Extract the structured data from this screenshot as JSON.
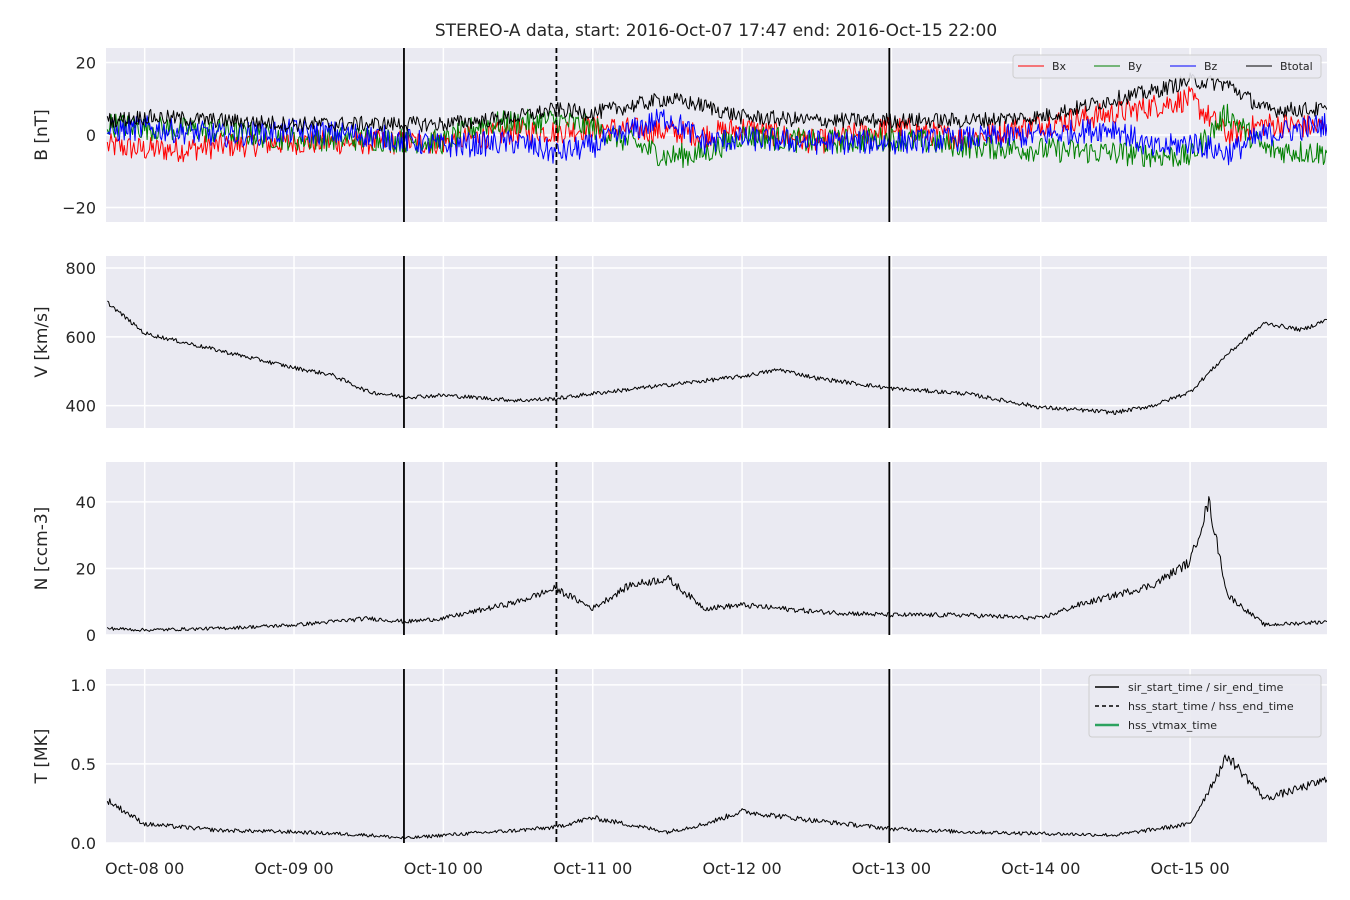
{
  "title": "STEREO-A data, start: 2016-Oct-07 17:47  end: 2016-Oct-15 22:00",
  "chart_data": {
    "type": "line",
    "x_axis": {
      "start": "2016-10-07 17:47",
      "end": "2016-10-15 22:00",
      "ticks": [
        {
          "date": "2016-10-08 00:00",
          "label": "Oct-08 00"
        },
        {
          "date": "2016-10-09 00:00",
          "label": "Oct-09 00"
        },
        {
          "date": "2016-10-10 00:00",
          "label": "Oct-10 00"
        },
        {
          "date": "2016-10-11 00:00",
          "label": "Oct-11 00"
        },
        {
          "date": "2016-10-12 00:00",
          "label": "Oct-12 00"
        },
        {
          "date": "2016-10-13 00:00",
          "label": "Oct-13 00"
        },
        {
          "date": "2016-10-14 00:00",
          "label": "Oct-14 00"
        },
        {
          "date": "2016-10-15 00:00",
          "label": "Oct-15 00"
        }
      ]
    },
    "event_lines": [
      {
        "date": "2016-10-09 17:40",
        "style": "solid",
        "label": "sir_start_time / sir_end_time"
      },
      {
        "date": "2016-10-10 18:10",
        "style": "dashed",
        "label": "hss_start_time / hss_end_time"
      },
      {
        "date": "2016-10-12 23:40",
        "style": "solid",
        "label": "sir_start_time / sir_end_time"
      }
    ],
    "event_legend": [
      {
        "label": "sir_start_time / sir_end_time",
        "style": "solid",
        "color": "#000000"
      },
      {
        "label": "hss_start_time / hss_end_time",
        "style": "dashed",
        "color": "#000000"
      },
      {
        "label": "hss_vtmax_time",
        "style": "solid",
        "color": "#2ca25f"
      }
    ],
    "panels": [
      {
        "name": "B",
        "ylabel": "B [nT]",
        "ylim": [
          -24,
          24
        ],
        "yticks": [
          -20,
          0,
          20
        ],
        "grid": true,
        "legend": "top-right",
        "series": [
          {
            "name": "Bx",
            "color": "#ff0000",
            "points": [
              [
                "2016-10-07 18:00",
                -3
              ],
              [
                "2016-10-08 00:00",
                -4
              ],
              [
                "2016-10-08 06:00",
                -4
              ],
              [
                "2016-10-08 12:00",
                -3
              ],
              [
                "2016-10-09 00:00",
                -2
              ],
              [
                "2016-10-09 12:00",
                -2
              ],
              [
                "2016-10-10 00:00",
                -2
              ],
              [
                "2016-10-10 12:00",
                1
              ],
              [
                "2016-10-10 18:00",
                1
              ],
              [
                "2016-10-11 00:00",
                2
              ],
              [
                "2016-10-11 12:00",
                1
              ],
              [
                "2016-10-11 18:00",
                0
              ],
              [
                "2016-10-12 00:00",
                2
              ],
              [
                "2016-10-12 12:00",
                -2
              ],
              [
                "2016-10-13 00:00",
                2
              ],
              [
                "2016-10-13 12:00",
                -1
              ],
              [
                "2016-10-14 00:00",
                3
              ],
              [
                "2016-10-14 12:00",
                6
              ],
              [
                "2016-10-14 18:00",
                8
              ],
              [
                "2016-10-15 00:00",
                10
              ],
              [
                "2016-10-15 06:00",
                0
              ],
              [
                "2016-10-15 12:00",
                3
              ],
              [
                "2016-10-15 22:00",
                2
              ]
            ]
          },
          {
            "name": "By",
            "color": "#008000",
            "points": [
              [
                "2016-10-07 18:00",
                3
              ],
              [
                "2016-10-08 00:00",
                2
              ],
              [
                "2016-10-08 12:00",
                1
              ],
              [
                "2016-10-09 00:00",
                -1
              ],
              [
                "2016-10-09 12:00",
                -1
              ],
              [
                "2016-10-10 00:00",
                -2
              ],
              [
                "2016-10-10 06:00",
                3
              ],
              [
                "2016-10-10 18:00",
                4
              ],
              [
                "2016-10-11 00:00",
                2
              ],
              [
                "2016-10-11 12:00",
                -6
              ],
              [
                "2016-10-11 18:00",
                -5
              ],
              [
                "2016-10-12 00:00",
                0
              ],
              [
                "2016-10-12 12:00",
                -2
              ],
              [
                "2016-10-13 00:00",
                -1
              ],
              [
                "2016-10-13 12:00",
                -3
              ],
              [
                "2016-10-14 00:00",
                -4
              ],
              [
                "2016-10-14 12:00",
                -5
              ],
              [
                "2016-10-15 00:00",
                -6
              ],
              [
                "2016-10-15 06:00",
                6
              ],
              [
                "2016-10-15 12:00",
                -4
              ],
              [
                "2016-10-15 22:00",
                -5
              ]
            ]
          },
          {
            "name": "Bz",
            "color": "#0000ff",
            "points": [
              [
                "2016-10-07 18:00",
                1
              ],
              [
                "2016-10-08 00:00",
                2
              ],
              [
                "2016-10-08 12:00",
                0
              ],
              [
                "2016-10-09 00:00",
                1
              ],
              [
                "2016-10-09 12:00",
                0
              ],
              [
                "2016-10-10 00:00",
                -3
              ],
              [
                "2016-10-10 12:00",
                -2
              ],
              [
                "2016-10-10 18:00",
                -5
              ],
              [
                "2016-10-11 00:00",
                -3
              ],
              [
                "2016-10-11 12:00",
                5
              ],
              [
                "2016-10-11 18:00",
                -2
              ],
              [
                "2016-10-12 00:00",
                -1
              ],
              [
                "2016-10-12 12:00",
                -2
              ],
              [
                "2016-10-13 00:00",
                -2
              ],
              [
                "2016-10-13 12:00",
                -1
              ],
              [
                "2016-10-14 00:00",
                0
              ],
              [
                "2016-10-14 12:00",
                2
              ],
              [
                "2016-10-14 18:00",
                -4
              ],
              [
                "2016-10-15 00:00",
                -2
              ],
              [
                "2016-10-15 06:00",
                -5
              ],
              [
                "2016-10-15 12:00",
                0
              ],
              [
                "2016-10-15 22:00",
                3
              ]
            ]
          },
          {
            "name": "Btotal",
            "color": "#000000",
            "points": [
              [
                "2016-10-07 18:00",
                4
              ],
              [
                "2016-10-08 00:00",
                5
              ],
              [
                "2016-10-08 12:00",
                4
              ],
              [
                "2016-10-09 00:00",
                3
              ],
              [
                "2016-10-09 12:00",
                3
              ],
              [
                "2016-10-10 00:00",
                3
              ],
              [
                "2016-10-10 12:00",
                5
              ],
              [
                "2016-10-10 18:00",
                7
              ],
              [
                "2016-10-11 00:00",
                6
              ],
              [
                "2016-10-11 12:00",
                10
              ],
              [
                "2016-10-11 18:00",
                8
              ],
              [
                "2016-10-12 00:00",
                5
              ],
              [
                "2016-10-12 12:00",
                4
              ],
              [
                "2016-10-13 00:00",
                4
              ],
              [
                "2016-10-13 12:00",
                4
              ],
              [
                "2016-10-14 00:00",
                5
              ],
              [
                "2016-10-14 12:00",
                10
              ],
              [
                "2016-10-14 18:00",
                12
              ],
              [
                "2016-10-15 00:00",
                15
              ],
              [
                "2016-10-15 06:00",
                14
              ],
              [
                "2016-10-15 12:00",
                7
              ],
              [
                "2016-10-15 22:00",
                7
              ]
            ]
          }
        ]
      },
      {
        "name": "V",
        "ylabel": "V [km/s]",
        "ylim": [
          335,
          835
        ],
        "yticks": [
          400,
          600,
          800
        ],
        "grid": true,
        "series": [
          {
            "name": "",
            "color": "#000000",
            "points": [
              [
                "2016-10-07 18:00",
                700
              ],
              [
                "2016-10-08 00:00",
                610
              ],
              [
                "2016-10-08 12:00",
                560
              ],
              [
                "2016-10-09 00:00",
                510
              ],
              [
                "2016-10-09 06:00",
                490
              ],
              [
                "2016-10-09 12:00",
                440
              ],
              [
                "2016-10-09 18:00",
                425
              ],
              [
                "2016-10-10 00:00",
                430
              ],
              [
                "2016-10-10 12:00",
                415
              ],
              [
                "2016-10-10 18:00",
                420
              ],
              [
                "2016-10-11 00:00",
                435
              ],
              [
                "2016-10-11 12:00",
                460
              ],
              [
                "2016-10-12 00:00",
                485
              ],
              [
                "2016-10-12 06:00",
                505
              ],
              [
                "2016-10-12 12:00",
                480
              ],
              [
                "2016-10-13 00:00",
                450
              ],
              [
                "2016-10-13 12:00",
                435
              ],
              [
                "2016-10-14 00:00",
                395
              ],
              [
                "2016-10-14 12:00",
                380
              ],
              [
                "2016-10-14 18:00",
                400
              ],
              [
                "2016-10-15 00:00",
                440
              ],
              [
                "2016-10-15 06:00",
                550
              ],
              [
                "2016-10-15 12:00",
                640
              ],
              [
                "2016-10-15 18:00",
                620
              ],
              [
                "2016-10-15 22:00",
                650
              ]
            ]
          }
        ]
      },
      {
        "name": "N",
        "ylabel": "N [ccm-3]",
        "ylim": [
          0,
          52
        ],
        "yticks": [
          0,
          20,
          40
        ],
        "grid": true,
        "series": [
          {
            "name": "",
            "color": "#000000",
            "points": [
              [
                "2016-10-07 18:00",
                2
              ],
              [
                "2016-10-08 00:00",
                1.5
              ],
              [
                "2016-10-08 12:00",
                2
              ],
              [
                "2016-10-09 00:00",
                3
              ],
              [
                "2016-10-09 12:00",
                5
              ],
              [
                "2016-10-09 18:00",
                4
              ],
              [
                "2016-10-10 00:00",
                5
              ],
              [
                "2016-10-10 12:00",
                10
              ],
              [
                "2016-10-10 18:00",
                14
              ],
              [
                "2016-10-11 00:00",
                8
              ],
              [
                "2016-10-11 06:00",
                15
              ],
              [
                "2016-10-11 12:00",
                17
              ],
              [
                "2016-10-11 18:00",
                8
              ],
              [
                "2016-10-12 00:00",
                9
              ],
              [
                "2016-10-12 12:00",
                7
              ],
              [
                "2016-10-13 00:00",
                6
              ],
              [
                "2016-10-13 12:00",
                6
              ],
              [
                "2016-10-14 00:00",
                5
              ],
              [
                "2016-10-14 06:00",
                9
              ],
              [
                "2016-10-14 12:00",
                12
              ],
              [
                "2016-10-14 18:00",
                15
              ],
              [
                "2016-10-15 00:00",
                22
              ],
              [
                "2016-10-15 03:00",
                40
              ],
              [
                "2016-10-15 06:00",
                12
              ],
              [
                "2016-10-15 12:00",
                3
              ],
              [
                "2016-10-15 22:00",
                4
              ]
            ]
          }
        ]
      },
      {
        "name": "T",
        "ylabel": "T [MK]",
        "ylim": [
          0,
          1.1
        ],
        "yticks": [
          0.0,
          0.5,
          1.0
        ],
        "ytick_labels": [
          "0.0",
          "0.5",
          "1.0"
        ],
        "grid": true,
        "legend": "top-right",
        "series": [
          {
            "name": "",
            "color": "#000000",
            "points": [
              [
                "2016-10-07 18:00",
                0.27
              ],
              [
                "2016-10-08 00:00",
                0.12
              ],
              [
                "2016-10-08 12:00",
                0.08
              ],
              [
                "2016-10-09 00:00",
                0.07
              ],
              [
                "2016-10-09 12:00",
                0.05
              ],
              [
                "2016-10-09 18:00",
                0.03
              ],
              [
                "2016-10-10 00:00",
                0.05
              ],
              [
                "2016-10-10 12:00",
                0.08
              ],
              [
                "2016-10-10 18:00",
                0.1
              ],
              [
                "2016-10-11 00:00",
                0.16
              ],
              [
                "2016-10-11 12:00",
                0.07
              ],
              [
                "2016-10-11 18:00",
                0.12
              ],
              [
                "2016-10-12 00:00",
                0.2
              ],
              [
                "2016-10-12 12:00",
                0.14
              ],
              [
                "2016-10-13 00:00",
                0.09
              ],
              [
                "2016-10-13 12:00",
                0.07
              ],
              [
                "2016-10-14 00:00",
                0.06
              ],
              [
                "2016-10-14 12:00",
                0.05
              ],
              [
                "2016-10-15 00:00",
                0.12
              ],
              [
                "2016-10-15 06:00",
                0.55
              ],
              [
                "2016-10-15 12:00",
                0.28
              ],
              [
                "2016-10-15 18:00",
                0.35
              ],
              [
                "2016-10-15 22:00",
                0.4
              ]
            ]
          }
        ]
      }
    ]
  }
}
